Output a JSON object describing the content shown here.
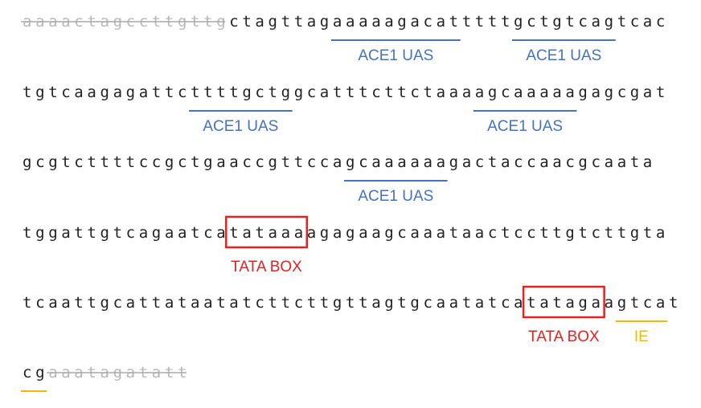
{
  "colors": {
    "sequence": "#222222",
    "struck": "#b8b8b8",
    "uas": "#4472c4",
    "tata": "#e32222",
    "ie": "#f5b800"
  },
  "rows": [
    {
      "segments": [
        {
          "text": "aaaactagccttgttg",
          "struck": true
        },
        {
          "text": "ctagttagaaaaagacatttttgctgtcagtcac"
        }
      ],
      "features": [
        {
          "type": "uas",
          "label": "ACE1 UAS",
          "start": 24,
          "end": 34
        },
        {
          "type": "uas",
          "label": "ACE1 UAS",
          "start": 38,
          "end": 46
        }
      ]
    },
    {
      "segments": [
        {
          "text": "tgtcaagagattcttttgctggcatttcttctaaaagcaaaaagagcgat"
        }
      ],
      "features": [
        {
          "type": "uas",
          "label": "ACE1 UAS",
          "start": 13,
          "end": 21
        },
        {
          "type": "uas",
          "label": "ACE1 UAS",
          "start": 35,
          "end": 43
        }
      ]
    },
    {
      "segments": [
        {
          "text": "gcgtcttttccgctgaaccgttccagcaaaaaagactaccaacgcaata"
        }
      ],
      "features": [
        {
          "type": "uas",
          "label": "ACE1 UAS",
          "start": 25,
          "end": 33
        }
      ]
    },
    {
      "segments": [
        {
          "text": "tggattgtcagaatcatataaaagagaagcaaataactccttgtcttgta"
        }
      ],
      "features": [
        {
          "type": "tata",
          "label": "TATA BOX",
          "start": 16,
          "end": 22
        }
      ]
    },
    {
      "segments": [
        {
          "text": "tcaattgcattataatatcttcttgttagtgcaatatcatatagaagtcat"
        }
      ],
      "features": [
        {
          "type": "tata",
          "label": "TATA BOX",
          "start": 39,
          "end": 45
        },
        {
          "type": "ie",
          "label": "IE",
          "start": 46,
          "end": 50
        }
      ]
    },
    {
      "segments": [
        {
          "text": "cg"
        },
        {
          "text": "aaatagatatt",
          "struck": true
        }
      ],
      "features": [
        {
          "type": "ie",
          "label": "",
          "start": 0,
          "end": 2
        }
      ]
    }
  ]
}
